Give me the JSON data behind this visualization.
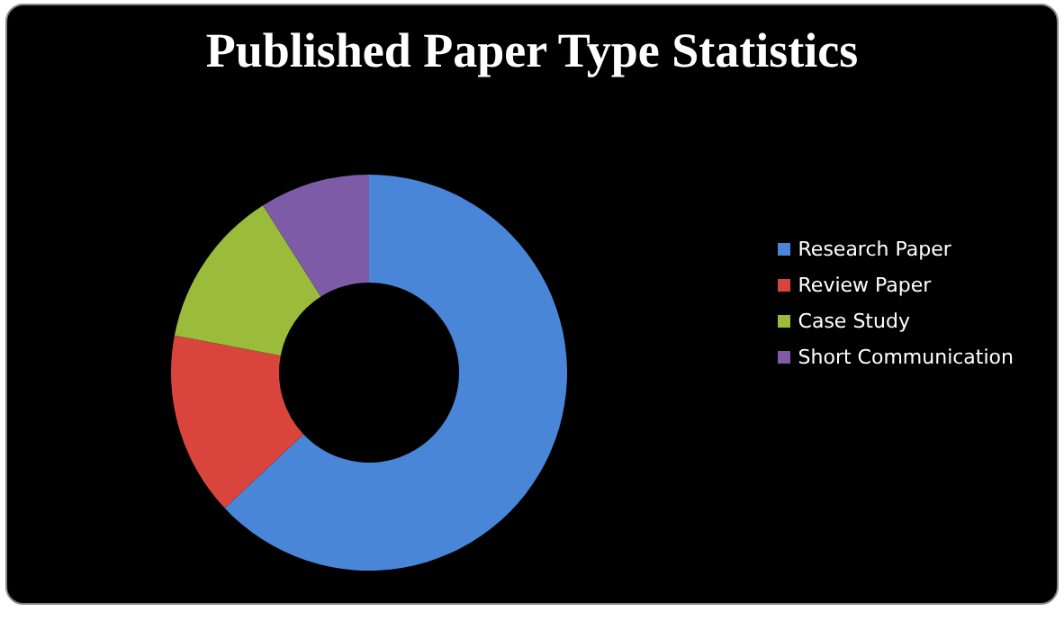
{
  "chart_data": {
    "type": "donut",
    "title": "Published Paper Type Statistics",
    "categories": [
      "Research Paper",
      "Review Paper",
      "Case Study",
      "Short Communication"
    ],
    "values": [
      63,
      15,
      13,
      9
    ],
    "colors": [
      "#4a86d8",
      "#d9453c",
      "#9bbb3b",
      "#7d5ba6"
    ],
    "legend": "right"
  }
}
